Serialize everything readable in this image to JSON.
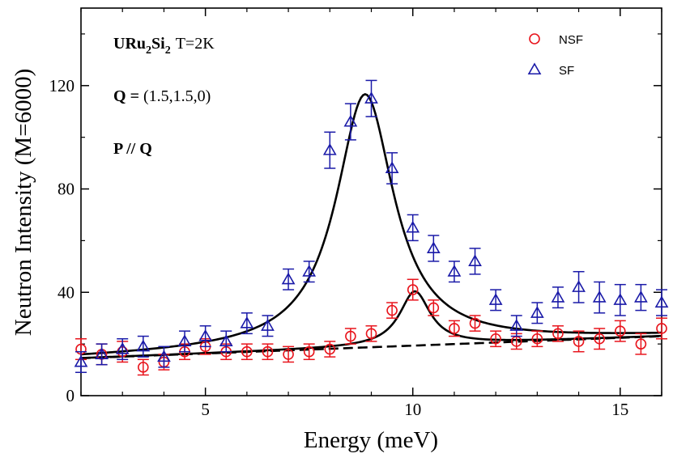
{
  "chart_data": {
    "type": "scatter",
    "title": "",
    "xlabel": "Energy (meV)",
    "ylabel": "Neutron Intensity (M=6000)",
    "xlim": [
      2,
      16
    ],
    "ylim": [
      0,
      150
    ],
    "xticks": [
      5,
      10,
      15
    ],
    "yticks": [
      0,
      40,
      80,
      120
    ],
    "grid": false,
    "legend_position": "top-right",
    "annotations": {
      "compound_main": "URu",
      "compound_sub1": "2",
      "compound_mid": "Si",
      "compound_sub2": "2",
      "temperature": "T=2K",
      "q_label": "Q",
      "q_eq": " = ",
      "q_value": "(1.5,1.5,0)",
      "p_label": "P // Q"
    },
    "series": [
      {
        "name": "NSF",
        "marker": "circle",
        "color": "#e8141c",
        "x": [
          2,
          2.5,
          3,
          3.5,
          4,
          4.5,
          5,
          5.5,
          6,
          6.5,
          7,
          7.5,
          8,
          8.5,
          9,
          9.5,
          10,
          10.5,
          11,
          11.5,
          12,
          12.5,
          13,
          13.5,
          14,
          14.5,
          15,
          15.5,
          16
        ],
        "y": [
          18,
          16,
          17,
          11,
          13,
          17,
          19,
          17,
          17,
          17,
          16,
          17,
          18,
          23,
          24,
          33,
          41,
          34,
          26,
          28,
          22,
          21,
          22,
          24,
          21,
          22,
          25,
          20,
          26
        ],
        "err": [
          4,
          4,
          4,
          3,
          3,
          3,
          3,
          3,
          3,
          3,
          3,
          3,
          3,
          3,
          3,
          3,
          4,
          3,
          3,
          3,
          3,
          3,
          3,
          3,
          4,
          4,
          4,
          4,
          4
        ]
      },
      {
        "name": "SF",
        "marker": "triangle",
        "color": "#1a1aa8",
        "x": [
          2,
          2.5,
          3,
          3.5,
          4,
          4.5,
          5,
          5.5,
          6,
          6.5,
          7,
          7.5,
          8,
          8.5,
          9,
          9.5,
          10,
          10.5,
          11,
          11.5,
          12,
          12.5,
          13,
          13.5,
          14,
          14.5,
          15,
          15.5,
          16
        ],
        "y": [
          13,
          16,
          18,
          19,
          15,
          21,
          23,
          21,
          28,
          27,
          45,
          48,
          95,
          106,
          115,
          88,
          65,
          57,
          48,
          52,
          37,
          27,
          32,
          38,
          42,
          38,
          37,
          38,
          36
        ],
        "err": [
          4,
          4,
          4,
          4,
          4,
          4,
          4,
          4,
          4,
          4,
          4,
          4,
          7,
          7,
          7,
          6,
          5,
          5,
          4,
          5,
          4,
          4,
          4,
          4,
          6,
          6,
          6,
          5,
          5
        ]
      }
    ],
    "fits": [
      {
        "style": "solid",
        "base": [
          14.5,
          23
        ],
        "amp": 98,
        "center": 8.85,
        "width": 0.85
      },
      {
        "style": "solid",
        "base": [
          14.5,
          23
        ],
        "amp": 21,
        "center": 10.05,
        "width": 0.45
      },
      {
        "style": "dashed",
        "base": [
          14.5,
          23
        ],
        "amp": 0,
        "center": 0,
        "width": 1
      }
    ]
  }
}
